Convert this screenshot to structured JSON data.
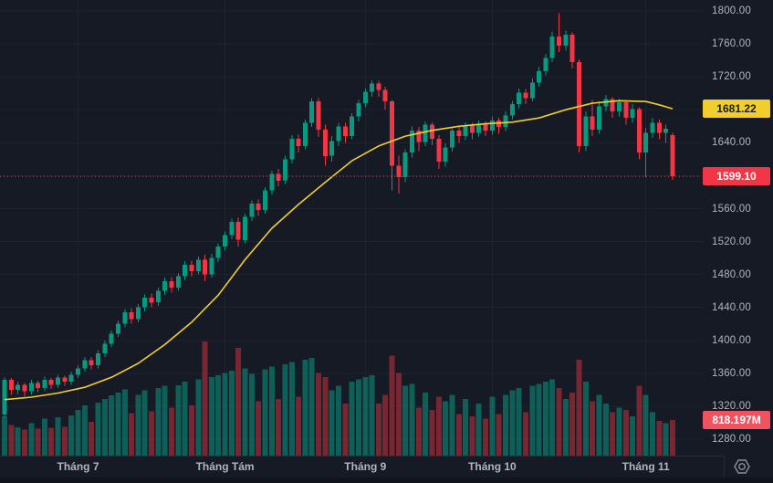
{
  "price_scale": {
    "tick_labels": [
      "1800.00",
      "1760.00",
      "1720.00",
      "1680.00",
      "1640.00",
      "1600.00",
      "1560.00",
      "1520.00",
      "1480.00",
      "1440.00",
      "1400.00",
      "1360.00",
      "1320.00",
      "1280.00"
    ],
    "ma_label": "1681.22",
    "last_price_label": "1599.10",
    "volume_label": "818.197M"
  },
  "time_scale": {
    "months": [
      {
        "label": "Tháng 7",
        "index": 11
      },
      {
        "label": "Tháng Tám",
        "index": 33
      },
      {
        "label": "Tháng 9",
        "index": 54
      },
      {
        "label": "Tháng 10",
        "index": 73
      },
      {
        "label": "Tháng 11",
        "index": 96
      }
    ]
  },
  "colors": {
    "background": "#161a25",
    "grid": "#1e2330",
    "axis_text": "#b2b5be",
    "candle_up": "#089981",
    "candle_down": "#f23645",
    "volume_up": "rgba(8,153,129,0.55)",
    "volume_down": "rgba(242,54,69,0.45)",
    "ma_line": "#f2ce2d",
    "ma_label_bg": "#f2ce2d",
    "last_price_bg": "#f23645",
    "volume_label_bg": "#ef5360",
    "last_price_line": "#f23645"
  },
  "chart_data": {
    "type": "candlestick",
    "title": "",
    "xlabel": "",
    "ylabel": "",
    "ylim": [
      1280,
      1800
    ],
    "y_tick_step": 40,
    "grid": true,
    "legend_position": "none",
    "x_categories": "daily candles, late June through early November (labels: Tháng 7, Tháng Tám, Tháng 9, Tháng 10, Tháng 11)",
    "overlays": [
      {
        "name": "moving-average",
        "style": "yellow line",
        "last_value": 1681.22
      },
      {
        "name": "volume",
        "style": "bottom histogram",
        "last_value_label": "818.197M",
        "max_value_m": 2620
      }
    ],
    "last_close": 1599.1,
    "last_volume_m": 818.197,
    "candles_format": [
      "open",
      "high",
      "low",
      "close",
      "volume_millions"
    ],
    "candles": [
      [
        1310,
        1355,
        1306,
        1352,
        900
      ],
      [
        1352,
        1354,
        1334,
        1340,
        700
      ],
      [
        1340,
        1350,
        1335,
        1346,
        650
      ],
      [
        1346,
        1348,
        1332,
        1338,
        600
      ],
      [
        1338,
        1352,
        1334,
        1348,
        750
      ],
      [
        1348,
        1351,
        1337,
        1342,
        620
      ],
      [
        1342,
        1356,
        1338,
        1352,
        850
      ],
      [
        1352,
        1354,
        1341,
        1346,
        640
      ],
      [
        1346,
        1358,
        1342,
        1355,
        880
      ],
      [
        1355,
        1357,
        1345,
        1350,
        660
      ],
      [
        1350,
        1362,
        1346,
        1358,
        920
      ],
      [
        1358,
        1370,
        1354,
        1366,
        1050
      ],
      [
        1366,
        1380,
        1362,
        1376,
        1150
      ],
      [
        1376,
        1380,
        1365,
        1370,
        780
      ],
      [
        1370,
        1388,
        1366,
        1384,
        1220
      ],
      [
        1384,
        1400,
        1380,
        1396,
        1300
      ],
      [
        1396,
        1412,
        1392,
        1408,
        1380
      ],
      [
        1408,
        1424,
        1404,
        1420,
        1450
      ],
      [
        1420,
        1438,
        1416,
        1434,
        1520
      ],
      [
        1434,
        1439,
        1420,
        1426,
        980
      ],
      [
        1426,
        1444,
        1422,
        1440,
        1400
      ],
      [
        1440,
        1456,
        1435,
        1452,
        1500
      ],
      [
        1452,
        1457,
        1440,
        1446,
        1020
      ],
      [
        1446,
        1464,
        1442,
        1460,
        1550
      ],
      [
        1460,
        1476,
        1455,
        1472,
        1600
      ],
      [
        1472,
        1477,
        1458,
        1464,
        1100
      ],
      [
        1464,
        1482,
        1460,
        1478,
        1620
      ],
      [
        1478,
        1496,
        1473,
        1492,
        1700
      ],
      [
        1492,
        1497,
        1478,
        1484,
        1150
      ],
      [
        1484,
        1502,
        1480,
        1498,
        1750
      ],
      [
        1498,
        1504,
        1472,
        1480,
        2620
      ],
      [
        1480,
        1505,
        1476,
        1500,
        1800
      ],
      [
        1500,
        1518,
        1495,
        1514,
        1850
      ],
      [
        1514,
        1532,
        1509,
        1528,
        1900
      ],
      [
        1528,
        1548,
        1523,
        1544,
        1950
      ],
      [
        1544,
        1549,
        1514,
        1522,
        2480
      ],
      [
        1522,
        1554,
        1518,
        1550,
        2000
      ],
      [
        1550,
        1570,
        1545,
        1566,
        1880
      ],
      [
        1566,
        1571,
        1551,
        1558,
        1250
      ],
      [
        1558,
        1586,
        1554,
        1582,
        1980
      ],
      [
        1582,
        1606,
        1577,
        1602,
        2050
      ],
      [
        1602,
        1608,
        1587,
        1594,
        1300
      ],
      [
        1594,
        1624,
        1590,
        1620,
        2100
      ],
      [
        1620,
        1649,
        1615,
        1645,
        2150
      ],
      [
        1645,
        1650,
        1628,
        1636,
        1350
      ],
      [
        1636,
        1668,
        1632,
        1664,
        2200
      ],
      [
        1664,
        1694,
        1659,
        1690,
        2250
      ],
      [
        1690,
        1694,
        1647,
        1656,
        1900
      ],
      [
        1656,
        1662,
        1612,
        1624,
        1800
      ],
      [
        1624,
        1648,
        1617,
        1642,
        1500
      ],
      [
        1642,
        1664,
        1636,
        1660,
        1600
      ],
      [
        1660,
        1664,
        1640,
        1648,
        1200
      ],
      [
        1648,
        1676,
        1644,
        1672,
        1700
      ],
      [
        1672,
        1692,
        1666,
        1688,
        1750
      ],
      [
        1688,
        1706,
        1683,
        1702,
        1800
      ],
      [
        1702,
        1716,
        1696,
        1712,
        1850
      ],
      [
        1712,
        1715,
        1696,
        1704,
        1200
      ],
      [
        1704,
        1708,
        1680,
        1690,
        1400
      ],
      [
        1690,
        1692,
        1582,
        1612,
        2300
      ],
      [
        1612,
        1624,
        1578,
        1598,
        1900
      ],
      [
        1598,
        1632,
        1592,
        1628,
        1600
      ],
      [
        1628,
        1660,
        1622,
        1655,
        1650
      ],
      [
        1655,
        1659,
        1630,
        1641,
        1100
      ],
      [
        1641,
        1666,
        1636,
        1662,
        1450
      ],
      [
        1662,
        1665,
        1637,
        1645,
        1050
      ],
      [
        1645,
        1649,
        1608,
        1617,
        1350
      ],
      [
        1617,
        1639,
        1611,
        1634,
        1250
      ],
      [
        1634,
        1659,
        1629,
        1655,
        1400
      ],
      [
        1655,
        1661,
        1640,
        1648,
        950
      ],
      [
        1648,
        1665,
        1643,
        1661,
        1300
      ],
      [
        1661,
        1664,
        1644,
        1652,
        900
      ],
      [
        1652,
        1667,
        1647,
        1663,
        1200
      ],
      [
        1663,
        1666,
        1648,
        1655,
        850
      ],
      [
        1655,
        1672,
        1650,
        1667,
        1350
      ],
      [
        1667,
        1670,
        1651,
        1659,
        950
      ],
      [
        1659,
        1678,
        1654,
        1673,
        1400
      ],
      [
        1673,
        1691,
        1668,
        1687,
        1500
      ],
      [
        1687,
        1706,
        1682,
        1701,
        1550
      ],
      [
        1701,
        1705,
        1687,
        1694,
        1000
      ],
      [
        1694,
        1718,
        1690,
        1713,
        1600
      ],
      [
        1713,
        1732,
        1708,
        1727,
        1650
      ],
      [
        1727,
        1748,
        1722,
        1743,
        1700
      ],
      [
        1743,
        1775,
        1738,
        1769,
        1750
      ],
      [
        1769,
        1797,
        1750,
        1758,
        1550
      ],
      [
        1758,
        1776,
        1752,
        1771,
        1300
      ],
      [
        1771,
        1774,
        1730,
        1738,
        1450
      ],
      [
        1738,
        1741,
        1628,
        1636,
        2200
      ],
      [
        1636,
        1678,
        1630,
        1672,
        1700
      ],
      [
        1672,
        1692,
        1648,
        1656,
        1250
      ],
      [
        1656,
        1690,
        1651,
        1684,
        1400
      ],
      [
        1684,
        1698,
        1678,
        1693,
        1200
      ],
      [
        1693,
        1695,
        1670,
        1678,
        1000
      ],
      [
        1678,
        1693,
        1672,
        1689,
        1100
      ],
      [
        1689,
        1692,
        1662,
        1670,
        1050
      ],
      [
        1670,
        1687,
        1664,
        1681,
        900
      ],
      [
        1681,
        1683,
        1620,
        1628,
        1600
      ],
      [
        1628,
        1658,
        1598,
        1652,
        1400
      ],
      [
        1652,
        1670,
        1646,
        1664,
        1000
      ],
      [
        1664,
        1668,
        1644,
        1652,
        800
      ],
      [
        1652,
        1662,
        1640,
        1657,
        750
      ],
      [
        1649,
        1652,
        1595,
        1599.1,
        818.197
      ]
    ],
    "ma_points": [
      [
        0,
        1328
      ],
      [
        4,
        1331
      ],
      [
        8,
        1336
      ],
      [
        12,
        1343
      ],
      [
        16,
        1355
      ],
      [
        20,
        1372
      ],
      [
        24,
        1395
      ],
      [
        28,
        1422
      ],
      [
        32,
        1455
      ],
      [
        36,
        1498
      ],
      [
        40,
        1536
      ],
      [
        44,
        1565
      ],
      [
        48,
        1592
      ],
      [
        52,
        1618
      ],
      [
        56,
        1636
      ],
      [
        60,
        1648
      ],
      [
        64,
        1655
      ],
      [
        68,
        1660
      ],
      [
        72,
        1663
      ],
      [
        76,
        1665
      ],
      [
        80,
        1670
      ],
      [
        84,
        1680
      ],
      [
        88,
        1688
      ],
      [
        92,
        1691
      ],
      [
        96,
        1690
      ],
      [
        98,
        1686
      ],
      [
        100,
        1681.22
      ]
    ]
  }
}
